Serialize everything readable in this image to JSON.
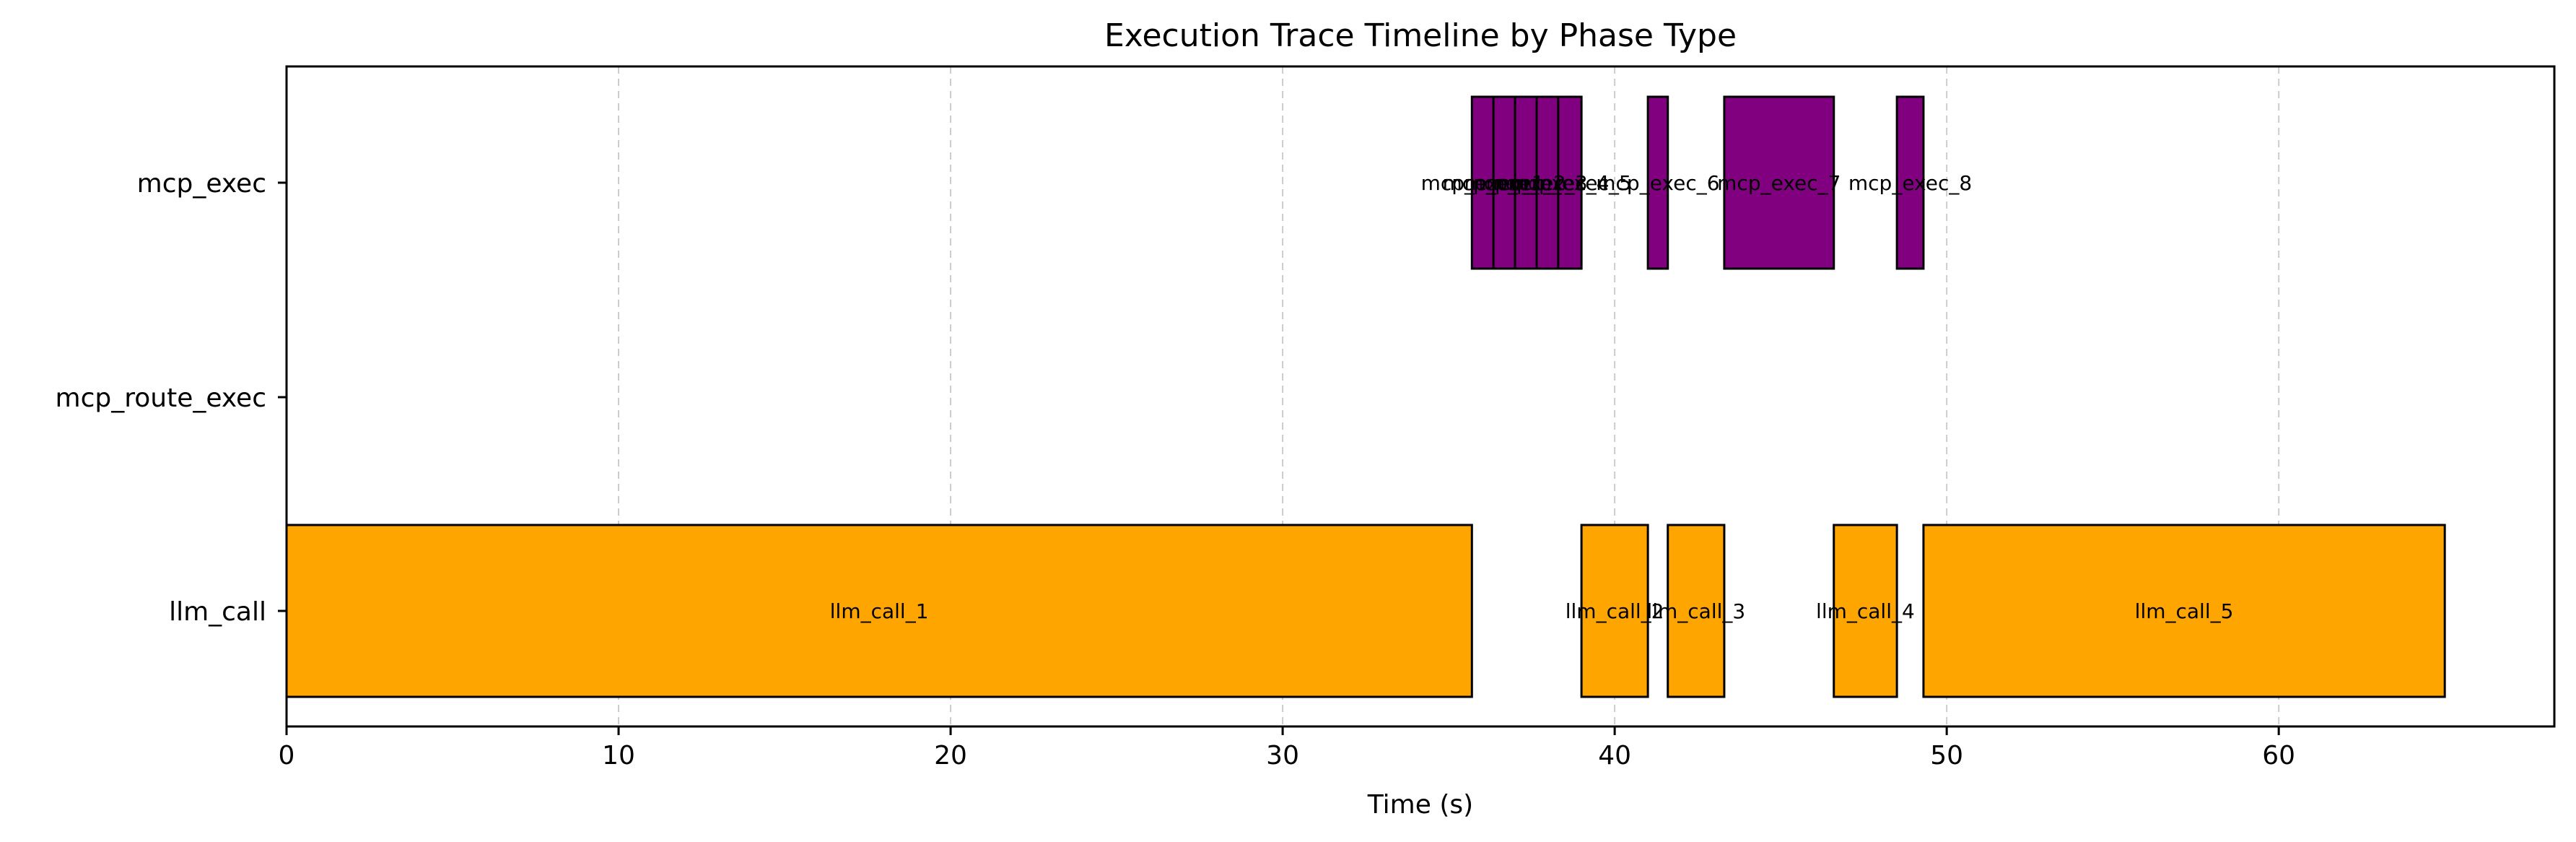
{
  "chart_data": {
    "type": "timeline",
    "title": "Execution Trace Timeline by Phase Type",
    "xlabel": "Time (s)",
    "ylabel": "",
    "xlim": [
      0,
      68.3
    ],
    "xticks": [
      0,
      10,
      20,
      30,
      40,
      50,
      60
    ],
    "categories": [
      "mcp_exec",
      "mcp_route_exec",
      "llm_call"
    ],
    "grid": "x-dashed",
    "colors": {
      "llm_call": "#FFA500",
      "mcp_exec": "#800080"
    },
    "segments": [
      {
        "category": "llm_call",
        "label": "llm_call_1",
        "start": 0.0,
        "end": 35.7
      },
      {
        "category": "llm_call",
        "label": "llm_call_2",
        "start": 39.0,
        "end": 41.0
      },
      {
        "category": "llm_call",
        "label": "llm_call_3",
        "start": 41.6,
        "end": 43.3
      },
      {
        "category": "llm_call",
        "label": "llm_call_4",
        "start": 46.6,
        "end": 48.5
      },
      {
        "category": "llm_call",
        "label": "llm_call_5",
        "start": 49.3,
        "end": 65.0
      },
      {
        "category": "mcp_exec",
        "label": "mcp_exec_1",
        "start": 35.7,
        "end": 36.35
      },
      {
        "category": "mcp_exec",
        "label": "mcp_exec_2",
        "start": 36.35,
        "end": 37.0
      },
      {
        "category": "mcp_exec",
        "label": "mcp_exec_3",
        "start": 37.0,
        "end": 37.65
      },
      {
        "category": "mcp_exec",
        "label": "mcp_exec_4",
        "start": 37.65,
        "end": 38.3
      },
      {
        "category": "mcp_exec",
        "label": "mcp_exec_5",
        "start": 38.3,
        "end": 39.0
      },
      {
        "category": "mcp_exec",
        "label": "mcp_exec_6",
        "start": 41.0,
        "end": 41.6
      },
      {
        "category": "mcp_exec",
        "label": "mcp_exec_7",
        "start": 43.3,
        "end": 46.6
      },
      {
        "category": "mcp_exec",
        "label": "mcp_exec_8",
        "start": 48.5,
        "end": 49.3
      }
    ]
  }
}
